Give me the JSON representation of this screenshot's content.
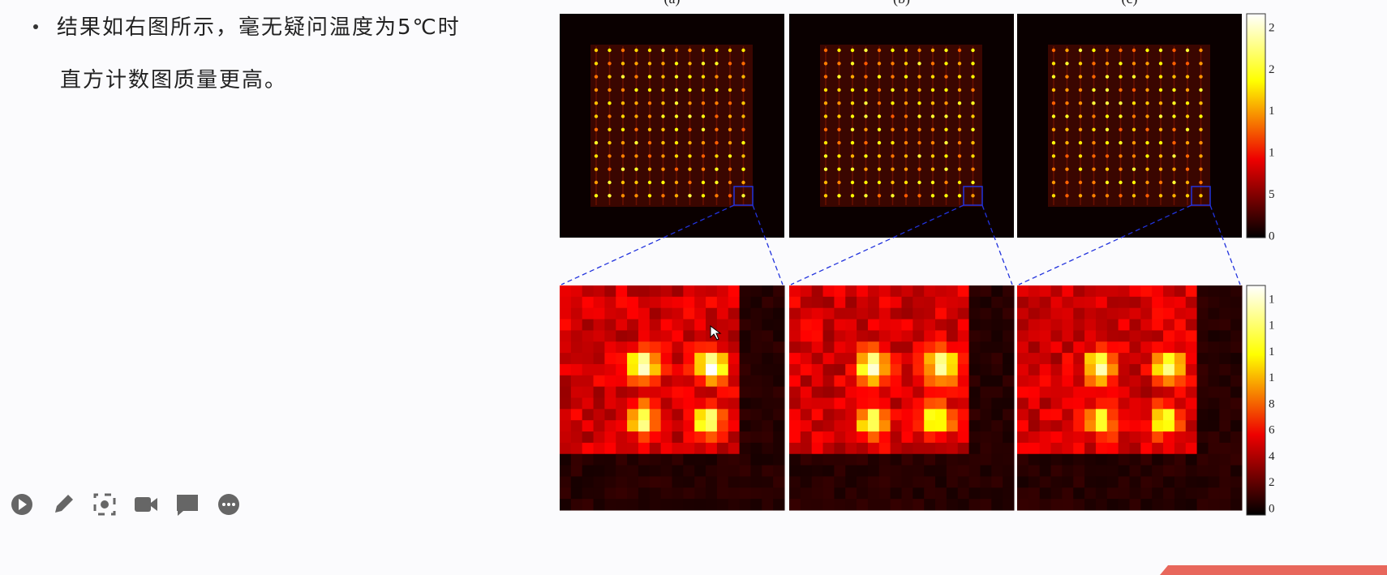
{
  "slide": {
    "bullet_lines": [
      "结果如右图所示，毫无疑问温度为5℃时",
      "直方计数图质量更高。"
    ],
    "panel_labels": [
      "(a)",
      "(b)",
      "(c)"
    ],
    "top_colorbar_labels": [
      "2",
      "2",
      "1",
      "1",
      "5",
      "0"
    ],
    "bottom_colorbar_labels": [
      "1",
      "1",
      "1",
      "1",
      "8",
      "6",
      "4",
      "2",
      "0"
    ]
  }
}
